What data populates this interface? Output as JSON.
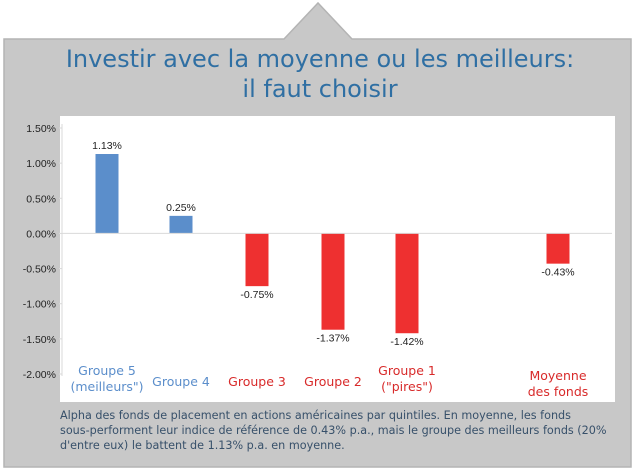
{
  "title_lines": [
    "Investir avec la moyenne ou les meilleurs:",
    "il faut choisir"
  ],
  "chart_data": {
    "type": "bar",
    "categories": [
      [
        "Groupe 5",
        "(meilleurs\")"
      ],
      [
        "Groupe 4"
      ],
      [
        "Groupe 3"
      ],
      [
        "Groupe 2"
      ],
      [
        "Groupe 1",
        "(\"pires\")"
      ],
      [
        "Moyenne",
        "des fonds"
      ]
    ],
    "values": [
      1.13,
      0.25,
      -0.75,
      -1.37,
      -1.42,
      -0.43
    ],
    "data_labels": [
      "1.13%",
      "0.25%",
      "-0.75%",
      "-1.37%",
      "-1.42%",
      "-0.43%"
    ],
    "ylim": [
      -2.0,
      1.5
    ],
    "yticks": [
      1.5,
      1.0,
      0.5,
      0.0,
      -0.5,
      -1.0,
      -1.5,
      -2.0
    ],
    "ytick_labels": [
      "1.50%",
      "1.00%",
      "0.50%",
      "0.00%",
      "-0.50%",
      "-1.00%",
      "-1.50%",
      "-2.00%"
    ],
    "grid": false,
    "colors": {
      "positive": "#5b8ecb",
      "negative": "#ee3030",
      "positive_label": "#5b8ecb",
      "negative_label": "#d82a2a",
      "axis": "#d9d9d9",
      "tick_text": "#222222"
    }
  },
  "footnote_lines": [
    "Alpha des fonds de placement en actions américaines par quintiles. En moyenne, les fonds",
    "sous-performent leur indice de référence de 0.43% p.a., mais le groupe des meilleurs fonds (20%",
    "d'entre eux) le battent de 1.13% p.a. en moyenne."
  ],
  "frame_color": "#c8c8c8"
}
